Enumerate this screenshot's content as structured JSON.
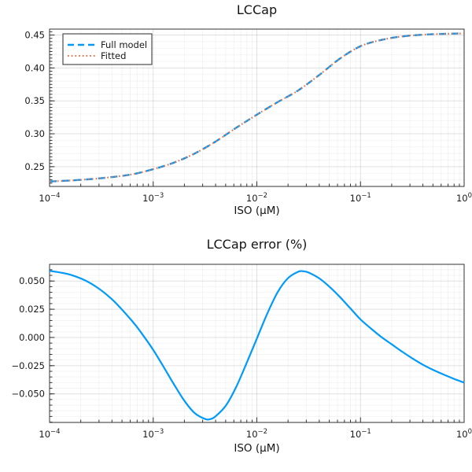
{
  "figure": {
    "background": "#ffffff",
    "frame_color": "#333333",
    "tick_label_color": "#191919",
    "grid_major_color": "rgba(0,0,0,0.12)",
    "grid_minor_color": "rgba(0,0,0,0.045)"
  },
  "chart_data": [
    {
      "type": "line",
      "title": "LCCap",
      "xlabel": "ISO (μM)",
      "ylabel": "",
      "x_scale": "log10",
      "xlim": [
        0.0001,
        1
      ],
      "ylim": [
        0.22,
        0.459
      ],
      "grid": true,
      "x_ticks_log10": [
        -4,
        -3,
        -2,
        -1,
        0
      ],
      "x_tick_labels": [
        "10⁻⁴",
        "10⁻³",
        "10⁻²",
        "10⁻¹",
        "10⁰"
      ],
      "y_ticks": [
        0.25,
        0.3,
        0.35,
        0.4,
        0.45
      ],
      "y_tick_labels": [
        "0.25",
        "0.30",
        "0.35",
        "0.40",
        "0.45"
      ],
      "legend": {
        "position": "top-left",
        "entries": [
          {
            "label": "Full model",
            "style": "dashed",
            "color": "#009AFA"
          },
          {
            "label": "Fitted",
            "style": "dotted",
            "color": "#E4714B"
          }
        ]
      },
      "series": [
        {
          "name": "Full model",
          "style": "dashed",
          "color": "#009AFA",
          "log10_x": [
            -4.0,
            -3.8,
            -3.6,
            -3.4,
            -3.2,
            -3.0,
            -2.8,
            -2.6,
            -2.4,
            -2.2,
            -2.0,
            -1.8,
            -1.6,
            -1.4,
            -1.2,
            -1.0,
            -0.8,
            -0.6,
            -0.4,
            -0.2,
            0.0
          ],
          "y": [
            0.2275,
            0.229,
            0.2312,
            0.2342,
            0.2385,
            0.2462,
            0.2562,
            0.27,
            0.288,
            0.309,
            0.329,
            0.348,
            0.366,
            0.389,
            0.414,
            0.433,
            0.4425,
            0.4478,
            0.4505,
            0.4518,
            0.4525
          ]
        },
        {
          "name": "Fitted",
          "style": "dotted",
          "color": "#E4714B",
          "log10_x": [
            -4.0,
            -3.8,
            -3.6,
            -3.4,
            -3.2,
            -3.0,
            -2.8,
            -2.6,
            -2.4,
            -2.2,
            -2.0,
            -1.8,
            -1.6,
            -1.4,
            -1.2,
            -1.0,
            -0.8,
            -0.6,
            -0.4,
            -0.2,
            0.0
          ],
          "y": [
            0.2275,
            0.229,
            0.2312,
            0.2342,
            0.2385,
            0.2462,
            0.2562,
            0.27,
            0.288,
            0.309,
            0.329,
            0.348,
            0.366,
            0.389,
            0.414,
            0.433,
            0.4425,
            0.4478,
            0.4505,
            0.4518,
            0.4525
          ]
        }
      ]
    },
    {
      "type": "line",
      "title": "LCCap error (%)",
      "xlabel": "ISO (μM)",
      "ylabel": "",
      "x_scale": "log10",
      "xlim": [
        0.0001,
        1
      ],
      "ylim": [
        -0.0753,
        0.0648
      ],
      "grid": true,
      "x_ticks_log10": [
        -4,
        -3,
        -2,
        -1,
        0
      ],
      "x_tick_labels": [
        "10⁻⁴",
        "10⁻³",
        "10⁻²",
        "10⁻¹",
        "10⁰"
      ],
      "y_ticks": [
        -0.05,
        -0.025,
        0.0,
        0.025,
        0.05
      ],
      "y_tick_labels": [
        "−0.050",
        "−0.025",
        "0.000",
        "0.025",
        "0.050"
      ],
      "legend": null,
      "series": [
        {
          "name": "LCCap error",
          "style": "solid",
          "color": "#009AFA",
          "log10_x": [
            -4.0,
            -3.8,
            -3.6,
            -3.4,
            -3.2,
            -3.1,
            -3.0,
            -2.9,
            -2.8,
            -2.7,
            -2.6,
            -2.5,
            -2.45,
            -2.4,
            -2.3,
            -2.2,
            -2.1,
            -2.0,
            -1.9,
            -1.8,
            -1.7,
            -1.6,
            -1.55,
            -1.5,
            -1.4,
            -1.3,
            -1.2,
            -1.1,
            -1.0,
            -0.9,
            -0.8,
            -0.7,
            -0.6,
            -0.5,
            -0.4,
            -0.3,
            -0.2,
            -0.1,
            0.0
          ],
          "y": [
            0.059,
            0.0556,
            0.0478,
            0.034,
            0.0142,
            0.0022,
            -0.011,
            -0.026,
            -0.0415,
            -0.056,
            -0.067,
            -0.0722,
            -0.0724,
            -0.07,
            -0.0605,
            -0.044,
            -0.023,
            -0.001,
            0.021,
            0.04,
            0.0525,
            0.0583,
            0.0586,
            0.0575,
            0.0525,
            0.045,
            0.036,
            0.026,
            0.016,
            0.008,
            0.0005,
            -0.006,
            -0.0125,
            -0.0185,
            -0.024,
            -0.0287,
            -0.0328,
            -0.0366,
            -0.04
          ]
        }
      ]
    }
  ]
}
